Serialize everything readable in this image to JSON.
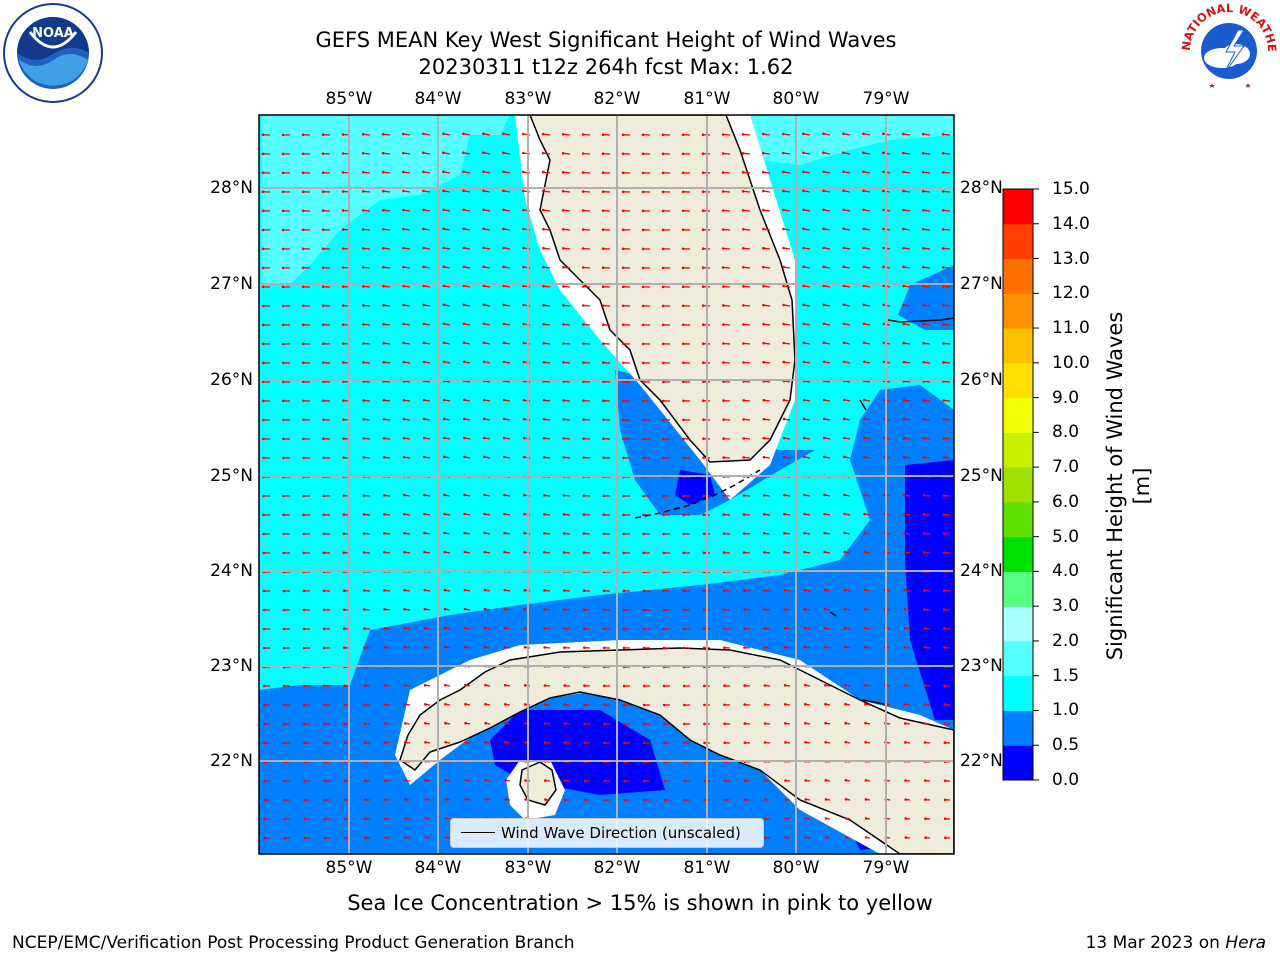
{
  "header": {
    "title_line1": "GEFS MEAN Key West Significant Height of Wind Waves",
    "title_line2": "20230311 t12z 264h fcst   Max: 1.62"
  },
  "map": {
    "lon_labels": [
      "85°W",
      "84°W",
      "83°W",
      "82°W",
      "81°W",
      "80°W",
      "79°W"
    ],
    "lat_labels": [
      "28°N",
      "27°N",
      "26°N",
      "25°N",
      "24°N",
      "23°N",
      "22°N"
    ],
    "land_color": "#efecdc",
    "arrow_color": "#ff0000",
    "grid": true,
    "legend_label": "Wind Wave Direction (unscaled)"
  },
  "colorbar": {
    "label": "Significant Height of Wind Waves [m]",
    "ticks": [
      "0.0",
      "0.5",
      "1.0",
      "1.5",
      "2.0",
      "3.0",
      "4.0",
      "5.0",
      "6.0",
      "7.0",
      "8.0",
      "9.0",
      "10.0",
      "11.0",
      "12.0",
      "13.0",
      "14.0",
      "15.0"
    ],
    "colors": [
      "#0000ff",
      "#0080ff",
      "#00ffff",
      "#55ffff",
      "#aaffff",
      "#55ff80",
      "#00e000",
      "#60e000",
      "#a0e000",
      "#c8f000",
      "#f0ff00",
      "#ffe000",
      "#ffc000",
      "#ff9000",
      "#ff7000",
      "#ff4000",
      "#ff0000"
    ]
  },
  "footer": {
    "caption": "Sea Ice Concentration > 15% is shown in pink to yellow",
    "credit": "NCEP/EMC/Verification Post Processing Product Generation Branch",
    "date": "13 Mar 2023 on",
    "host": "Hera"
  },
  "logos": {
    "noaa": "NOAA",
    "nws_text": "NATIONAL WEATHER SERVICE"
  }
}
